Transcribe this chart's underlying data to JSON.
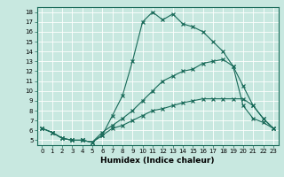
{
  "xlabel": "Humidex (Indice chaleur)",
  "xlim": [
    -0.5,
    23.5
  ],
  "ylim": [
    4.5,
    18.5
  ],
  "xticks": [
    0,
    1,
    2,
    3,
    4,
    5,
    6,
    7,
    8,
    9,
    10,
    11,
    12,
    13,
    14,
    15,
    16,
    17,
    18,
    19,
    20,
    21,
    22,
    23
  ],
  "yticks": [
    5,
    6,
    7,
    8,
    9,
    10,
    11,
    12,
    13,
    14,
    15,
    16,
    17,
    18
  ],
  "bg_color": "#c8e8e0",
  "line_color": "#1a6b5a",
  "line1_x": [
    0,
    1,
    2,
    3,
    4,
    5,
    6,
    7,
    8,
    9,
    10,
    11,
    12,
    13,
    14,
    15,
    16,
    17,
    18,
    19,
    20,
    21,
    22,
    23
  ],
  "line1_y": [
    6.2,
    5.8,
    5.2,
    5.0,
    5.0,
    4.8,
    5.5,
    7.5,
    9.5,
    13.0,
    17.0,
    18.0,
    17.2,
    17.8,
    16.8,
    16.5,
    16.0,
    15.0,
    14.0,
    12.5,
    8.5,
    7.2,
    6.8,
    6.2
  ],
  "line2_x": [
    0,
    1,
    2,
    3,
    4,
    5,
    6,
    7,
    8,
    9,
    10,
    11,
    12,
    13,
    14,
    15,
    16,
    17,
    18,
    19,
    20,
    21,
    22,
    23
  ],
  "line2_y": [
    6.2,
    5.8,
    5.2,
    5.0,
    5.0,
    4.8,
    5.8,
    6.5,
    7.2,
    8.0,
    9.0,
    10.0,
    11.0,
    11.5,
    12.0,
    12.2,
    12.8,
    13.0,
    13.2,
    12.5,
    10.5,
    8.5,
    7.2,
    6.2
  ],
  "line3_x": [
    0,
    1,
    2,
    3,
    4,
    5,
    6,
    7,
    8,
    9,
    10,
    11,
    12,
    13,
    14,
    15,
    16,
    17,
    18,
    19,
    20,
    21,
    22,
    23
  ],
  "line3_y": [
    6.2,
    5.8,
    5.2,
    5.0,
    5.0,
    4.8,
    5.5,
    6.2,
    6.5,
    7.0,
    7.5,
    8.0,
    8.2,
    8.5,
    8.8,
    9.0,
    9.2,
    9.2,
    9.2,
    9.2,
    9.2,
    8.5,
    7.2,
    6.2
  ]
}
